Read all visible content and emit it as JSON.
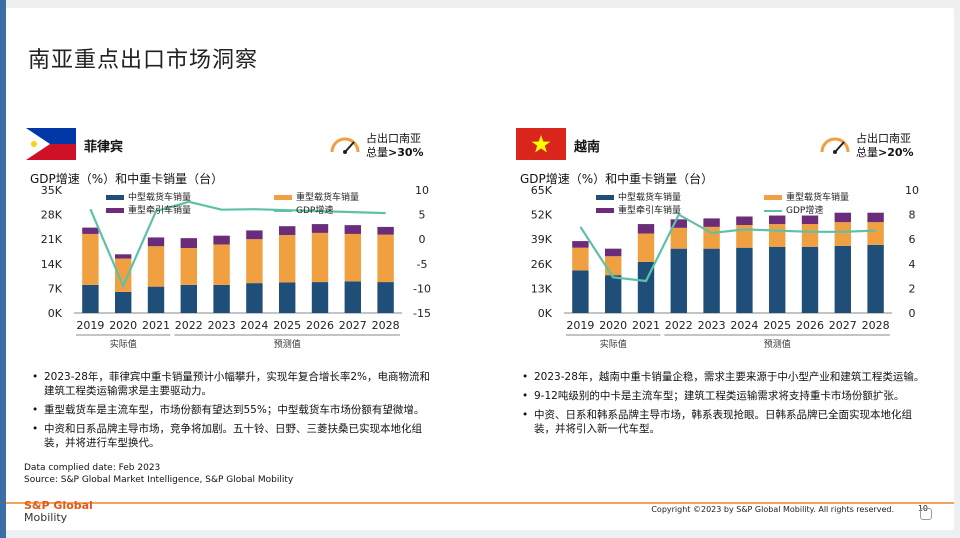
{
  "title": "南亚重点出口市场洞察",
  "left": {
    "country": "菲律宾",
    "share_line1": "占出口南亚",
    "share_line2": "总量",
    "share_value": ">30%",
    "chart_title": "GDP增速（%）和中重卡销量（台）",
    "legend": {
      "medium": "中型载货车销量",
      "heavy": "重型载货车销量",
      "tractor": "重型牵引车销量",
      "gdp": "GDP增速"
    },
    "period_actual": "实际值",
    "period_forecast": "预测值",
    "bullets": [
      "2023-28年，菲律宾中重卡销量预计小幅攀升，实现年复合增长率2%，电商物流和建筑工程类运输需求是主要驱动力。",
      "重型载货车是主流车型，市场份额有望达到55%；中型载货车市场份额有望微增。",
      "中资和日系品牌主导市场，竞争将加剧。五十铃、日野、三菱扶桑已实现本地化组装，并将进行车型换代。"
    ]
  },
  "right": {
    "country": "越南",
    "share_line1": "占出口南亚",
    "share_line2": "总量",
    "share_value": ">20%",
    "chart_title": "GDP增速（%）和中重卡销量（台）",
    "legend": {
      "medium": "中型载货车销量",
      "heavy": "重型载货车销量",
      "tractor": "重型牵引车销量",
      "gdp": "GDP增速"
    },
    "period_actual": "实际值",
    "period_forecast": "预测值",
    "bullets": [
      "2023-28年，越南中重卡销量企稳，需求主要来源于中小型产业和建筑工程类运输。",
      "9-12吨级别的中卡是主流车型；建筑工程类运输需求将支持重卡市场份额扩张。",
      "中资、日系和韩系品牌主导市场，韩系表现抢眼。日韩系品牌已全面实现本地化组装，并将引入新一代车型。"
    ]
  },
  "data_date": "Data complied date: Feb 2023",
  "source": "Source: S&P Global Market Intelligence, S&P Global Mobility",
  "logo_line1": "S&P Global",
  "logo_line2": "Mobility",
  "copyright": "Copyright ©2023 by S&P Global Mobility. All rights reserved.",
  "page_number": "10",
  "colors": {
    "medium": "#1f4e79",
    "heavy": "#f0a041",
    "tractor": "#6b2d7a",
    "gdp": "#5fc0a8"
  },
  "chart_data": [
    {
      "type": "bar",
      "stacked": true,
      "categories": [
        "2019",
        "2020",
        "2021",
        "2022",
        "2023",
        "2024",
        "2025",
        "2026",
        "2027",
        "2028"
      ],
      "left_ticks": [
        "35K",
        "28K",
        "21K",
        "14K",
        "7K",
        "0K"
      ],
      "right_ticks": [
        "10",
        "5",
        "0",
        "-5",
        "-10",
        "-15"
      ],
      "ylim": [
        0,
        35000
      ],
      "y2lim": [
        -15,
        10
      ],
      "series": [
        {
          "name": "中型载货车销量",
          "values": [
            8000,
            6000,
            7500,
            8000,
            8000,
            8500,
            8700,
            8800,
            9000,
            8800
          ]
        },
        {
          "name": "重型载货车销量",
          "values": [
            14500,
            9500,
            11500,
            10500,
            11500,
            12500,
            13500,
            14000,
            13500,
            13500
          ]
        },
        {
          "name": "重型牵引车销量",
          "values": [
            1800,
            1200,
            2500,
            2800,
            2500,
            2500,
            2500,
            2500,
            2500,
            2200
          ]
        },
        {
          "name": "GDP增速",
          "type": "line",
          "axis": "right",
          "values": [
            6.1,
            -9.5,
            5.7,
            7.6,
            6.0,
            6.1,
            5.9,
            5.7,
            5.5,
            5.3
          ]
        }
      ]
    },
    {
      "type": "bar",
      "stacked": true,
      "categories": [
        "2019",
        "2020",
        "2021",
        "2022",
        "2023",
        "2024",
        "2025",
        "2026",
        "2027",
        "2028"
      ],
      "left_ticks": [
        "65K",
        "52K",
        "39K",
        "26K",
        "13K",
        "0K"
      ],
      "right_ticks": [
        "10",
        "8",
        "6",
        "4",
        "2",
        "0"
      ],
      "ylim": [
        0,
        65000
      ],
      "y2lim": [
        0,
        10
      ],
      "series": [
        {
          "name": "中型载货车销量",
          "values": [
            22500,
            20000,
            27000,
            34000,
            34000,
            34500,
            35000,
            35000,
            35500,
            36000
          ]
        },
        {
          "name": "重型载货车销量",
          "values": [
            12000,
            10000,
            15000,
            11000,
            11500,
            12000,
            12000,
            12000,
            12500,
            12000
          ]
        },
        {
          "name": "重型牵引车销量",
          "values": [
            3500,
            4000,
            5000,
            4500,
            4500,
            4500,
            4500,
            4500,
            5000,
            5000
          ]
        },
        {
          "name": "GDP增速",
          "type": "line",
          "axis": "right",
          "values": [
            7.0,
            2.9,
            2.6,
            8.0,
            6.5,
            6.8,
            6.7,
            6.6,
            6.6,
            6.7
          ]
        }
      ]
    }
  ]
}
